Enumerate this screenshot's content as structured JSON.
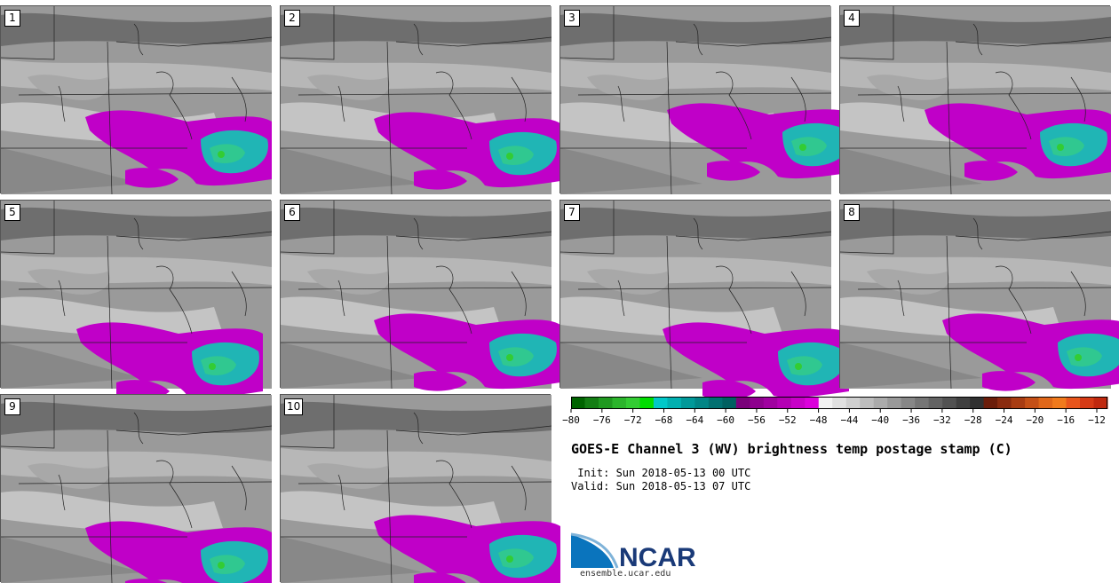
{
  "panels": [
    {
      "label": "1"
    },
    {
      "label": "2"
    },
    {
      "label": "3"
    },
    {
      "label": "4"
    },
    {
      "label": "5"
    },
    {
      "label": "6"
    },
    {
      "label": "7"
    },
    {
      "label": "8"
    },
    {
      "label": "9"
    },
    {
      "label": "10"
    }
  ],
  "colorbar": {
    "ticks": [
      "−80",
      "−76",
      "−72",
      "−68",
      "−64",
      "−60",
      "−56",
      "−52",
      "−48",
      "−44",
      "−40",
      "−36",
      "−32",
      "−28",
      "−24",
      "−20",
      "−16",
      "−12"
    ],
    "colors": [
      "#006400",
      "#137e13",
      "#1f991f",
      "#2bb52b",
      "#33cc33",
      "#00dd00",
      "#00c8c8",
      "#00b0b0",
      "#009999",
      "#008585",
      "#007070",
      "#006060",
      "#7a007a",
      "#8e008e",
      "#a000a0",
      "#b400b4",
      "#c800c8",
      "#dc00dc",
      "#f2f2f2",
      "#e0e0e0",
      "#cfcfcf",
      "#bdbdbd",
      "#ababab",
      "#999999",
      "#878787",
      "#757575",
      "#636363",
      "#525252",
      "#404040",
      "#303030",
      "#6b1d0a",
      "#8a2b0f",
      "#a83c12",
      "#c55016",
      "#e06719",
      "#f07a1c",
      "#e8551b",
      "#d63a15",
      "#c0280e"
    ]
  },
  "title": "GOES-E Channel 3 (WV) brightness temp postage stamp (C)",
  "init_line": " Init: Sun 2018-05-13 00 UTC",
  "valid_line": "Valid: Sun 2018-05-13 07 UTC",
  "logo_text": "NCAR",
  "url": "ensemble.ucar.edu"
}
